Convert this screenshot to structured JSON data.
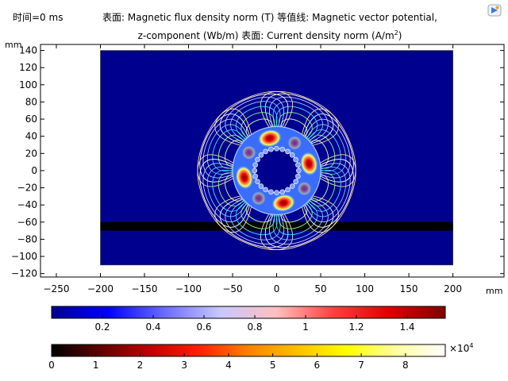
{
  "header": {
    "time_label": "时间=0 ms",
    "title_line1": "表面: Magnetic flux density norm (T)  等值线: Magnetic vector potential,",
    "title_line2a": "z-component (Wb/m)  表面: Current density norm (A/m",
    "title_line2_sup": "2",
    "title_line2b": ")"
  },
  "toolbar": {
    "icon": "comsol-logo-icon"
  },
  "axes": {
    "x_unit": "mm",
    "y_unit": "mm",
    "x_ticks": [
      -250,
      -200,
      -150,
      -100,
      -50,
      0,
      50,
      100,
      150,
      200
    ],
    "y_ticks": [
      140,
      120,
      100,
      80,
      60,
      40,
      20,
      0,
      -20,
      -40,
      -60,
      -80,
      -100,
      -120
    ],
    "x_range": [
      -268,
      258
    ],
    "y_range": [
      -124,
      147
    ]
  },
  "chart_data": {
    "type": "heatmap",
    "title": "Magnetic flux density norm (T); contours: Magnetic vector potential, z-component (Wb/m); Current density norm (A/m^2)",
    "domain": {
      "x": [
        -200,
        200
      ],
      "y": [
        -110,
        140
      ]
    },
    "background_color": "#00008f",
    "black_strip_y": [
      -70,
      -60
    ],
    "stator_ring": {
      "center": [
        0,
        0
      ],
      "inner_radius": 25,
      "outer_radius": 50
    },
    "pole_count": 8,
    "strong_poles_deg": [
      -78,
      12,
      102,
      192
    ],
    "petal_lobes_count": 8,
    "colorbar_B": {
      "label_unit": "T",
      "range": [
        0,
        1.55
      ],
      "ticks": [
        "0.2",
        "0.4",
        "0.6",
        "0.8",
        "1",
        "1.2",
        "1.4"
      ],
      "tick_values": [
        0.2,
        0.4,
        0.6,
        0.8,
        1.0,
        1.2,
        1.4
      ],
      "colors": [
        "#00008f",
        "#0000ff",
        "#6a6aff",
        "#c8c8ff",
        "#ffbfbf",
        "#ff4040",
        "#e00000",
        "#800000"
      ]
    },
    "colorbar_J": {
      "label_unit": "A/m^2",
      "range": [
        0,
        8.9
      ],
      "exponent_label": "×10",
      "exponent_power": "4",
      "ticks": [
        "0",
        "1",
        "2",
        "3",
        "4",
        "5",
        "6",
        "7",
        "8"
      ],
      "tick_values": [
        0,
        1,
        2,
        3,
        4,
        5,
        6,
        7,
        8
      ],
      "colors": [
        "#000000",
        "#600000",
        "#c00000",
        "#ff2000",
        "#ff8000",
        "#ffc000",
        "#ffff00",
        "#ffffa0",
        "#ffffff"
      ]
    }
  }
}
